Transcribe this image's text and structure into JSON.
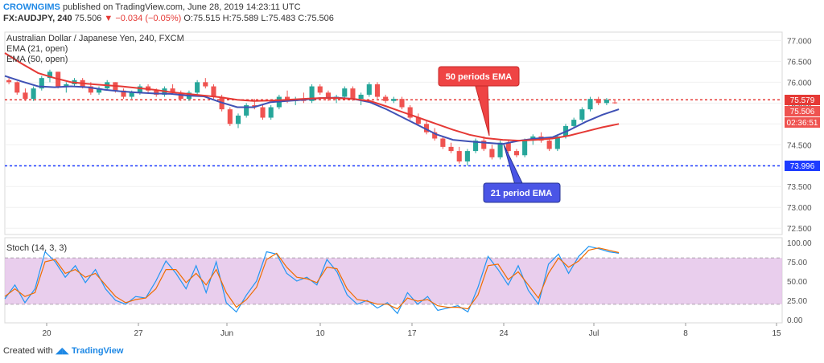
{
  "header": {
    "author": "CROWNGIMS",
    "published": "published on TradingView.com, June 28, 2019 14:23:11 UTC",
    "symbol": "FX:AUDJPY, 240",
    "last": "75.506",
    "change": "▼ −0.034 (−0.05%)",
    "o": "O:75.515",
    "h": "H:75.589",
    "l": "L:75.483",
    "c": "C:75.506"
  },
  "legend": {
    "title": "Australian Dollar / Japanese Yen, 240, FXCM",
    "ema21": "EMA (21, open)",
    "ema50": "EMA (50, open)",
    "stoch": "Stoch (14, 3, 3)"
  },
  "annotations": {
    "ema50": "50 periods EMA",
    "ema21": "21 period EMA"
  },
  "price_labels": {
    "red": "75.579",
    "last": "75.506",
    "countdown": "02:36:51",
    "blue": "73.996"
  },
  "footer": {
    "created": "Created with",
    "brand": "TradingView"
  },
  "colors": {
    "up": "#26a69a",
    "down": "#ef5350",
    "ema21": "#3f51b5",
    "ema50": "#e53935",
    "stoch_k": "#2196f3",
    "stoch_d": "#ef6c00",
    "stoch_band": "#e1bee7"
  },
  "chart_data": {
    "type": "candlestick",
    "price_axis": {
      "ylim": [
        72.35,
        77.2
      ],
      "ticks": [
        "77.000",
        "76.500",
        "76.000",
        "75.500",
        "75.000",
        "74.500",
        "74.000",
        "73.500",
        "73.000",
        "72.500"
      ]
    },
    "stoch_axis": {
      "ylim": [
        0,
        100
      ],
      "ticks": [
        "100.00",
        "75.00",
        "50.00",
        "25.00",
        "0.00"
      ],
      "band": [
        20,
        80
      ]
    },
    "x_labels": [
      "20",
      "27",
      "Jun",
      "10",
      "17",
      "24",
      "Jul",
      "8",
      "15"
    ],
    "hlines": [
      {
        "name": "resistance",
        "value": 75.579,
        "color": "#e53935"
      },
      {
        "name": "support",
        "value": 73.996,
        "color": "#1e3cff"
      }
    ],
    "series": [
      {
        "name": "EMA (21, open)",
        "values": [
          76.15,
          76.02,
          75.9,
          75.88,
          75.9,
          75.88,
          75.82,
          75.78,
          75.75,
          75.73,
          75.72,
          75.68,
          75.66,
          75.52,
          75.4,
          75.4,
          75.52,
          75.55,
          75.58,
          75.62,
          75.63,
          75.6,
          75.52,
          75.35,
          75.15,
          74.95,
          74.75,
          74.62,
          74.58,
          74.55,
          74.52,
          74.6,
          74.65,
          74.68,
          74.85,
          75.05,
          75.22,
          75.35
        ]
      },
      {
        "name": "EMA (50, open)",
        "values": [
          76.7,
          76.45,
          76.22,
          76.1,
          76.0,
          75.96,
          75.93,
          75.9,
          75.86,
          75.82,
          75.76,
          75.72,
          75.68,
          75.64,
          75.58,
          75.55,
          75.56,
          75.58,
          75.6,
          75.62,
          75.62,
          75.6,
          75.55,
          75.42,
          75.28,
          75.14,
          75.0,
          74.86,
          74.74,
          74.66,
          74.62,
          74.6,
          74.62,
          74.65,
          74.72,
          74.82,
          74.92,
          75.0
        ]
      },
      {
        "name": "Stoch %K",
        "values": [
          27,
          45,
          22,
          40,
          88,
          75,
          55,
          70,
          48,
          65,
          40,
          25,
          20,
          30,
          28,
          50,
          76,
          60,
          40,
          70,
          35,
          75,
          22,
          10,
          32,
          50,
          88,
          85,
          60,
          50,
          55,
          45,
          78,
          62,
          32,
          20,
          25,
          15,
          22,
          8,
          35,
          20,
          30,
          12,
          15,
          18,
          10,
          42,
          82,
          65,
          45,
          70,
          38,
          20,
          72,
          85,
          60,
          82,
          95,
          92,
          88,
          86
        ]
      },
      {
        "name": "Stoch %D",
        "values": [
          30,
          40,
          30,
          35,
          75,
          78,
          60,
          65,
          55,
          60,
          45,
          30,
          22,
          26,
          28,
          40,
          65,
          65,
          48,
          60,
          45,
          65,
          35,
          16,
          26,
          42,
          78,
          86,
          68,
          55,
          53,
          48,
          68,
          66,
          40,
          26,
          24,
          20,
          20,
          14,
          28,
          24,
          26,
          18,
          16,
          16,
          14,
          32,
          70,
          72,
          52,
          62,
          45,
          28,
          60,
          80,
          68,
          76,
          90,
          93,
          90,
          87
        ]
      }
    ],
    "candles_ohlc": [
      [
        76.05,
        76.1,
        75.95,
        76.0
      ],
      [
        76.0,
        76.02,
        75.7,
        75.75
      ],
      [
        75.75,
        75.85,
        75.55,
        75.6
      ],
      [
        75.6,
        75.9,
        75.55,
        75.85
      ],
      [
        75.85,
        76.15,
        75.8,
        76.1
      ],
      [
        76.1,
        76.3,
        76.0,
        76.25
      ],
      [
        76.25,
        76.25,
        75.85,
        75.9
      ],
      [
        75.9,
        76.0,
        75.75,
        75.95
      ],
      [
        75.95,
        76.1,
        75.9,
        76.05
      ],
      [
        76.05,
        76.1,
        75.85,
        75.9
      ],
      [
        75.9,
        76.0,
        75.7,
        75.75
      ],
      [
        75.75,
        75.9,
        75.7,
        75.85
      ],
      [
        75.85,
        76.05,
        75.8,
        76.0
      ],
      [
        76.0,
        76.0,
        75.75,
        75.8
      ],
      [
        75.8,
        75.85,
        75.6,
        75.65
      ],
      [
        75.65,
        75.8,
        75.6,
        75.75
      ],
      [
        75.75,
        75.95,
        75.7,
        75.9
      ],
      [
        75.9,
        75.95,
        75.75,
        75.8
      ],
      [
        75.8,
        75.85,
        75.65,
        75.7
      ],
      [
        75.7,
        75.9,
        75.65,
        75.85
      ],
      [
        75.85,
        75.95,
        75.7,
        75.75
      ],
      [
        75.75,
        75.8,
        75.55,
        75.6
      ],
      [
        75.6,
        75.8,
        75.55,
        75.75
      ],
      [
        75.75,
        76.05,
        75.7,
        76.0
      ],
      [
        76.0,
        76.1,
        75.85,
        75.9
      ],
      [
        75.9,
        75.95,
        75.6,
        75.65
      ],
      [
        75.65,
        75.7,
        75.3,
        75.35
      ],
      [
        75.35,
        75.4,
        74.95,
        75.0
      ],
      [
        75.0,
        75.25,
        74.9,
        75.2
      ],
      [
        75.2,
        75.5,
        75.15,
        75.45
      ],
      [
        75.45,
        75.6,
        75.35,
        75.4
      ],
      [
        75.4,
        75.45,
        75.1,
        75.15
      ],
      [
        75.15,
        75.45,
        75.1,
        75.4
      ],
      [
        75.4,
        75.7,
        75.35,
        75.65
      ],
      [
        75.65,
        75.8,
        75.5,
        75.55
      ],
      [
        75.55,
        75.65,
        75.45,
        75.6
      ],
      [
        75.6,
        75.75,
        75.5,
        75.55
      ],
      [
        75.55,
        75.95,
        75.5,
        75.9
      ],
      [
        75.9,
        75.95,
        75.7,
        75.75
      ],
      [
        75.75,
        75.8,
        75.55,
        75.6
      ],
      [
        75.6,
        75.7,
        75.5,
        75.65
      ],
      [
        75.65,
        75.9,
        75.6,
        75.85
      ],
      [
        75.85,
        75.9,
        75.55,
        75.6
      ],
      [
        75.6,
        75.75,
        75.45,
        75.7
      ],
      [
        75.7,
        76.0,
        75.65,
        75.95
      ],
      [
        75.95,
        76.0,
        75.6,
        75.65
      ],
      [
        75.65,
        75.7,
        75.5,
        75.55
      ],
      [
        75.55,
        75.65,
        75.5,
        75.6
      ],
      [
        75.6,
        75.65,
        75.35,
        75.4
      ],
      [
        75.4,
        75.45,
        75.1,
        75.15
      ],
      [
        75.15,
        75.25,
        74.95,
        75.0
      ],
      [
        75.0,
        75.1,
        74.75,
        74.8
      ],
      [
        74.8,
        74.9,
        74.6,
        74.65
      ],
      [
        74.65,
        74.7,
        74.4,
        74.45
      ],
      [
        74.45,
        74.55,
        74.3,
        74.35
      ],
      [
        74.35,
        74.45,
        74.05,
        74.1
      ],
      [
        74.1,
        74.4,
        74.0,
        74.35
      ],
      [
        74.35,
        74.65,
        74.3,
        74.6
      ],
      [
        74.6,
        74.7,
        74.35,
        74.4
      ],
      [
        74.4,
        74.5,
        74.15,
        74.2
      ],
      [
        74.2,
        74.6,
        74.15,
        74.55
      ],
      [
        74.55,
        74.6,
        74.3,
        74.35
      ],
      [
        74.35,
        74.4,
        74.2,
        74.25
      ],
      [
        74.25,
        74.65,
        74.2,
        74.6
      ],
      [
        74.6,
        74.75,
        74.5,
        74.7
      ],
      [
        74.7,
        74.8,
        74.55,
        74.6
      ],
      [
        74.6,
        74.65,
        74.35,
        74.4
      ],
      [
        74.4,
        74.75,
        74.35,
        74.7
      ],
      [
        74.7,
        75.0,
        74.65,
        74.95
      ],
      [
        74.95,
        75.15,
        74.9,
        75.1
      ],
      [
        75.1,
        75.4,
        75.05,
        75.35
      ],
      [
        75.35,
        75.65,
        75.3,
        75.6
      ],
      [
        75.6,
        75.65,
        75.45,
        75.5
      ],
      [
        75.5,
        75.62,
        75.45,
        75.58
      ],
      [
        75.515,
        75.589,
        75.483,
        75.506
      ]
    ]
  }
}
